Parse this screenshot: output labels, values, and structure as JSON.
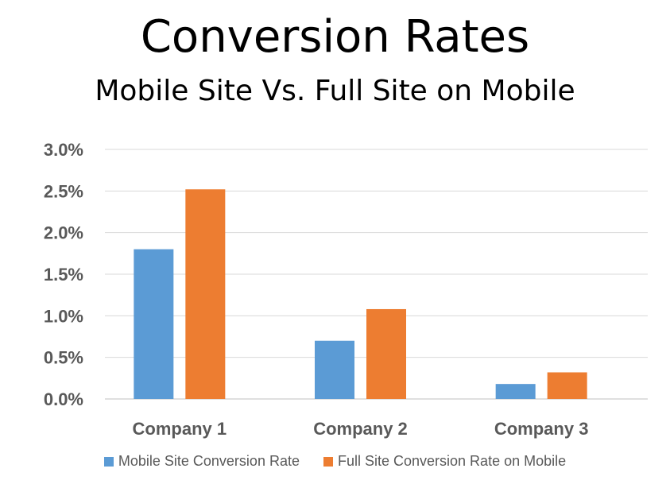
{
  "title": "Conversion Rates",
  "subtitle": "Mobile Site Vs. Full Site on Mobile",
  "chart_data": {
    "type": "bar",
    "title": "Conversion Rates",
    "subtitle": "Mobile Site Vs. Full Site on Mobile",
    "categories": [
      "Company 1",
      "Company 2",
      "Company 3"
    ],
    "series": [
      {
        "name": "Mobile Site Conversion Rate",
        "color": "#5b9bd5",
        "values": [
          1.8,
          0.7,
          0.18
        ]
      },
      {
        "name": "Full Site Conversion Rate on Mobile",
        "color": "#ed7d31",
        "values": [
          2.52,
          1.08,
          0.32
        ]
      }
    ],
    "ylim": [
      0,
      3.0
    ],
    "yticks": [
      "0.0%",
      "0.5%",
      "1.0%",
      "1.5%",
      "2.0%",
      "2.5%",
      "3.0%"
    ],
    "grid": true,
    "legend_position": "bottom"
  }
}
